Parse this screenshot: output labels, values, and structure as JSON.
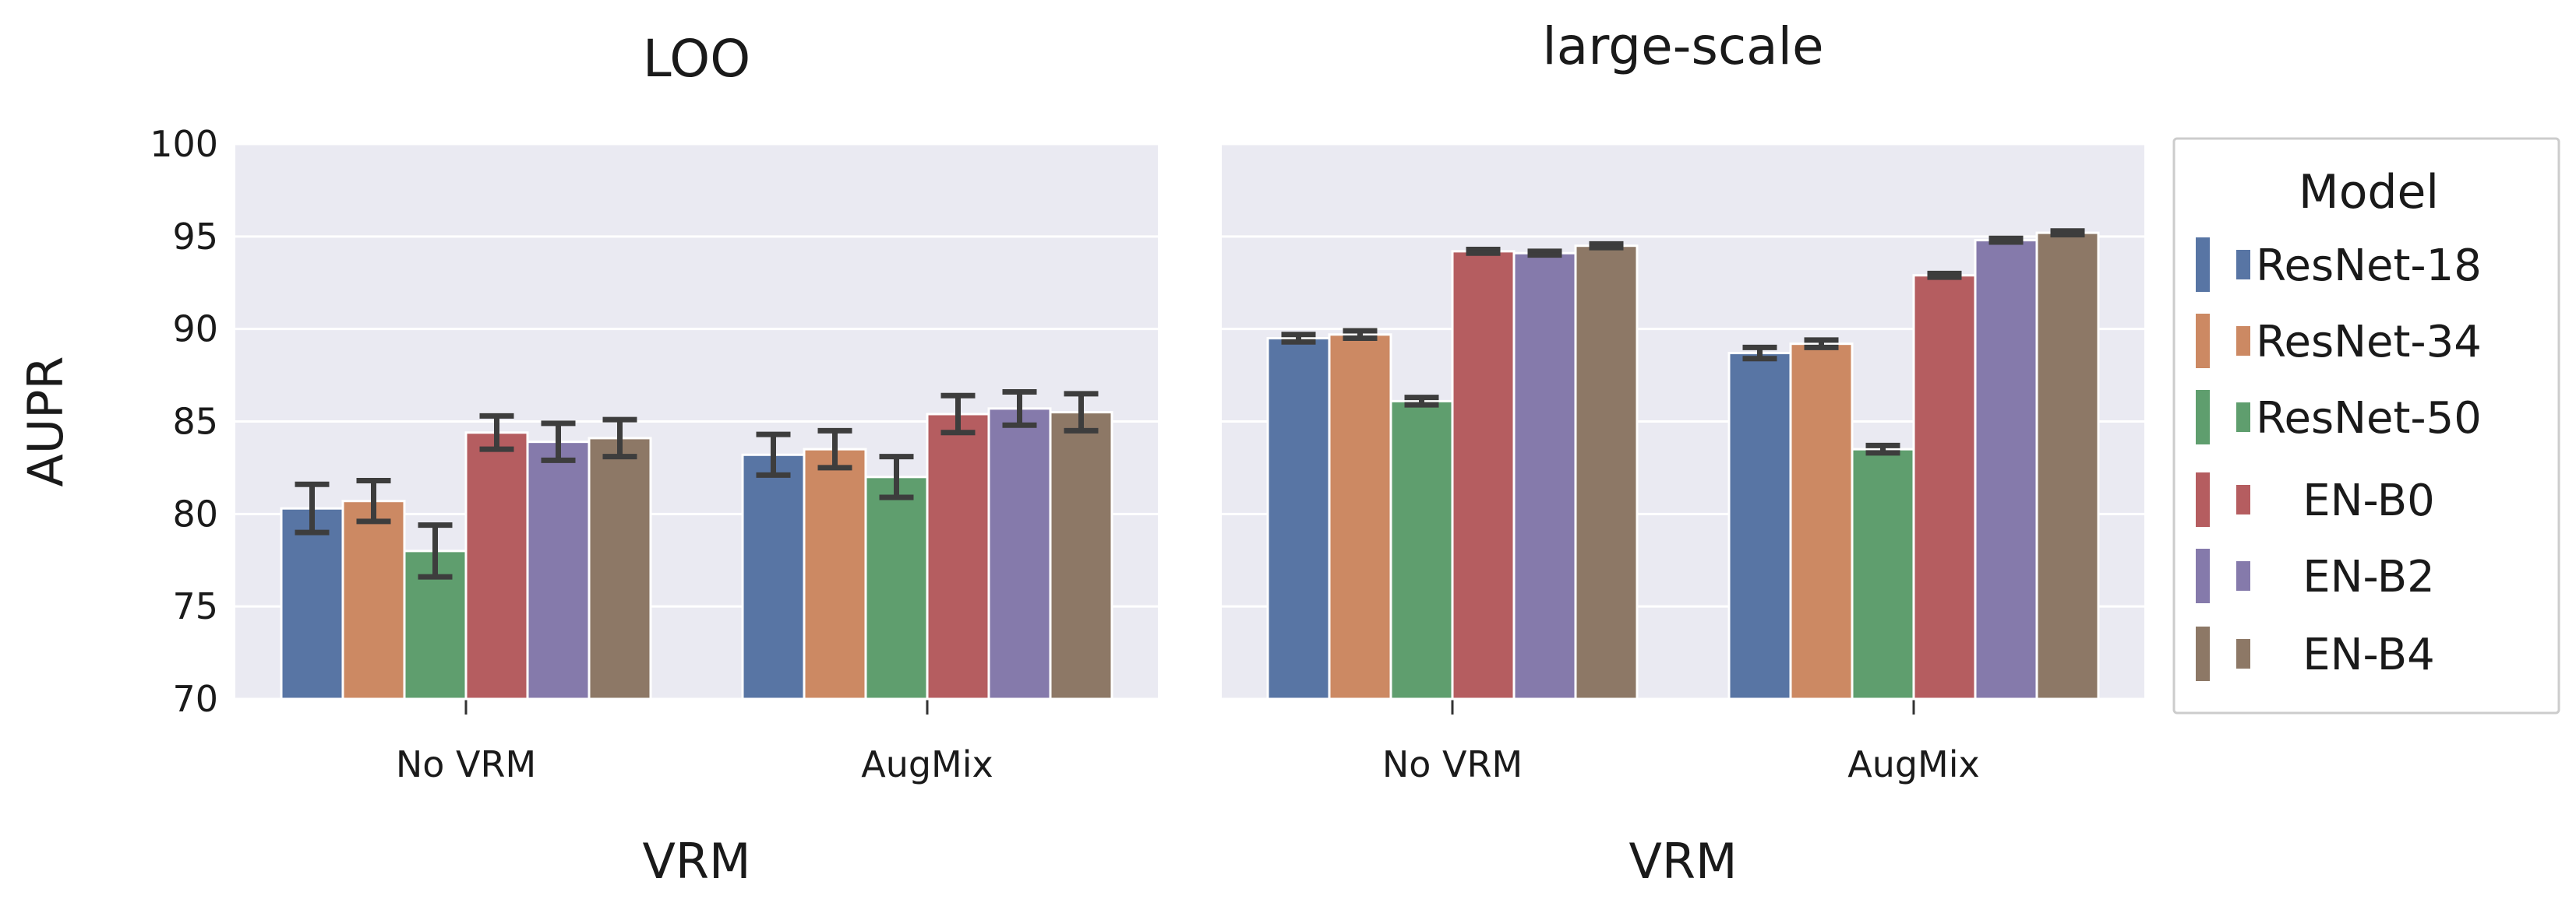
{
  "chart_data": {
    "type": "bar",
    "ylabel": "AUPR",
    "ylim": [
      70,
      100
    ],
    "yticks": [
      70,
      75,
      80,
      85,
      90,
      95,
      100
    ],
    "grid": true,
    "legend": {
      "title": "Model",
      "position": "right",
      "entries": [
        "ResNet-18",
        "ResNet-34",
        "ResNet-50",
        "EN-B0",
        "EN-B2",
        "EN-B4"
      ]
    },
    "colors": [
      "#5875a4",
      "#cc8963",
      "#5f9e6e",
      "#b55d60",
      "#857aab",
      "#8d7866"
    ],
    "errorbar_color": "#3d3d3d",
    "background": "#eaeaf2",
    "panels": [
      {
        "title": "LOO",
        "xlabel": "VRM",
        "categories": [
          "No VRM",
          "AugMix"
        ],
        "series": [
          {
            "name": "ResNet-18",
            "values": [
              80.3,
              83.2
            ],
            "errors": [
              1.3,
              1.1
            ]
          },
          {
            "name": "ResNet-34",
            "values": [
              80.7,
              83.5
            ],
            "errors": [
              1.1,
              1.0
            ]
          },
          {
            "name": "ResNet-50",
            "values": [
              78.0,
              82.0
            ],
            "errors": [
              1.4,
              1.1
            ]
          },
          {
            "name": "EN-B0",
            "values": [
              84.4,
              85.4
            ],
            "errors": [
              0.9,
              1.0
            ]
          },
          {
            "name": "EN-B2",
            "values": [
              83.9,
              85.7
            ],
            "errors": [
              1.0,
              0.9
            ]
          },
          {
            "name": "EN-B4",
            "values": [
              84.1,
              85.5
            ],
            "errors": [
              1.0,
              1.0
            ]
          }
        ]
      },
      {
        "title": "large-scale",
        "xlabel": "VRM",
        "categories": [
          "No VRM",
          "AugMix"
        ],
        "series": [
          {
            "name": "ResNet-18",
            "values": [
              89.5,
              88.7
            ],
            "errors": [
              0.2,
              0.3
            ]
          },
          {
            "name": "ResNet-34",
            "values": [
              89.7,
              89.2
            ],
            "errors": [
              0.2,
              0.2
            ]
          },
          {
            "name": "ResNet-50",
            "values": [
              86.1,
              83.5
            ],
            "errors": [
              0.2,
              0.2
            ]
          },
          {
            "name": "EN-B0",
            "values": [
              94.2,
              92.9
            ],
            "errors": [
              0.1,
              0.1
            ]
          },
          {
            "name": "EN-B2",
            "values": [
              94.1,
              94.8
            ],
            "errors": [
              0.1,
              0.1
            ]
          },
          {
            "name": "EN-B4",
            "values": [
              94.5,
              95.2
            ],
            "errors": [
              0.1,
              0.1
            ]
          }
        ]
      }
    ]
  }
}
